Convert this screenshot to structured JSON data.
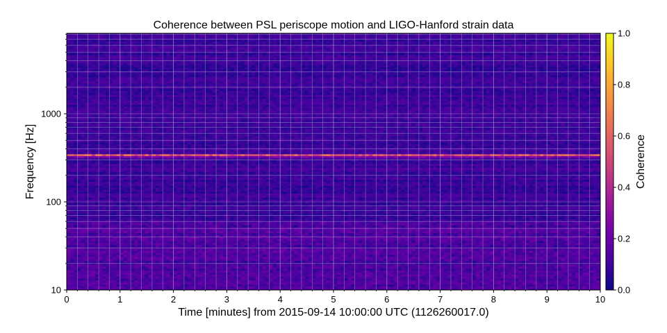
{
  "chart_data": {
    "type": "heatmap",
    "title": "Coherence between PSL periscope motion and LIGO-Hanford strain data",
    "xlabel": "Time [minutes] from 2015-09-14 10:00:00 UTC (1126260017.0)",
    "ylabel": "Frequency [Hz]",
    "xlim": [
      0,
      10
    ],
    "ylim": [
      10,
      8192
    ],
    "yscale": "log",
    "x_ticks": [
      0,
      1,
      2,
      3,
      4,
      5,
      6,
      7,
      8,
      9,
      10
    ],
    "x_tick_labels": [
      "0",
      "1",
      "2",
      "3",
      "4",
      "5",
      "6",
      "7",
      "8",
      "9",
      "10"
    ],
    "y_ticks": [
      10,
      100,
      1000
    ],
    "y_tick_labels": [
      "10",
      "100",
      "1000"
    ],
    "grid": true,
    "colormap": "plasma",
    "colorbar": {
      "label": "Coherence",
      "min": 0.0,
      "max": 1.0,
      "ticks": [
        0.0,
        0.2,
        0.4,
        0.6,
        0.8,
        1.0
      ],
      "tick_labels": [
        "0.0",
        "0.2",
        "0.4",
        "0.6",
        "0.8",
        "1.0"
      ]
    },
    "background_coherence": 0.05,
    "features": [
      {
        "frequency_hz": 345,
        "coherence": 0.62
      },
      {
        "frequency_hz": 320,
        "coherence": 0.58
      },
      {
        "frequency_hz": 333,
        "coherence": 0.4
      },
      {
        "frequency_hz": 120,
        "coherence": 0.3
      },
      {
        "frequency_hz": 180,
        "coherence": 0.22
      },
      {
        "frequency_hz": 200,
        "coherence": 0.15
      },
      {
        "frequency_hz": 240,
        "coherence": 0.15
      }
    ],
    "colors": {
      "plasma_low": "#0d0887",
      "plasma_mid": "#cc4778",
      "plasma_high": "#f0f921"
    }
  }
}
